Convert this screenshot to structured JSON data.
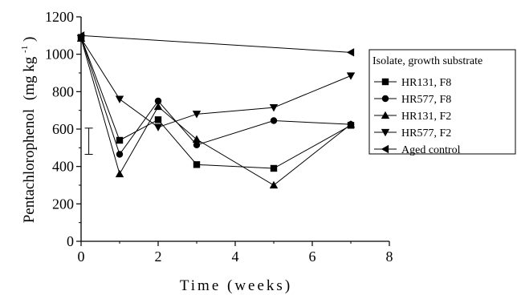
{
  "chart_data": {
    "type": "line",
    "xlabel": "Time (weeks)",
    "ylabel": "Pentachlorophenol",
    "ylabel_unit": "(mg kg",
    "ylabel_exponent": "-1",
    "ylabel_close": ")",
    "xlim": [
      0,
      8
    ],
    "ylim": [
      0,
      1200
    ],
    "xticks": [
      0,
      2,
      4,
      6,
      8
    ],
    "yticks": [
      0,
      200,
      400,
      600,
      800,
      1000,
      1200
    ],
    "grid": false,
    "legend": {
      "title": "Isolate, growth substrate",
      "placement": "right"
    },
    "error_bar": {
      "x": 0.2,
      "low": 465,
      "high": 605
    },
    "series": [
      {
        "name": "HR131, F8",
        "marker": "square",
        "x": [
          0,
          1,
          2,
          3,
          5,
          7
        ],
        "y": [
          1090,
          540,
          650,
          410,
          390,
          620
        ]
      },
      {
        "name": "HR577, F8",
        "marker": "circle",
        "x": [
          0,
          1,
          2,
          3,
          5,
          7
        ],
        "y": [
          1090,
          465,
          750,
          515,
          645,
          625
        ]
      },
      {
        "name": "HR131, F2",
        "marker": "triangle-up",
        "x": [
          0,
          1,
          2,
          3,
          5,
          7
        ],
        "y": [
          1085,
          360,
          720,
          545,
          300,
          625
        ]
      },
      {
        "name": "HR577, F2",
        "marker": "triangle-down",
        "x": [
          0,
          1,
          2,
          3,
          5,
          7
        ],
        "y": [
          1085,
          760,
          610,
          680,
          715,
          885
        ]
      },
      {
        "name": "Aged control",
        "marker": "triangle-left",
        "x": [
          0,
          7
        ],
        "y": [
          1100,
          1010
        ]
      }
    ]
  }
}
